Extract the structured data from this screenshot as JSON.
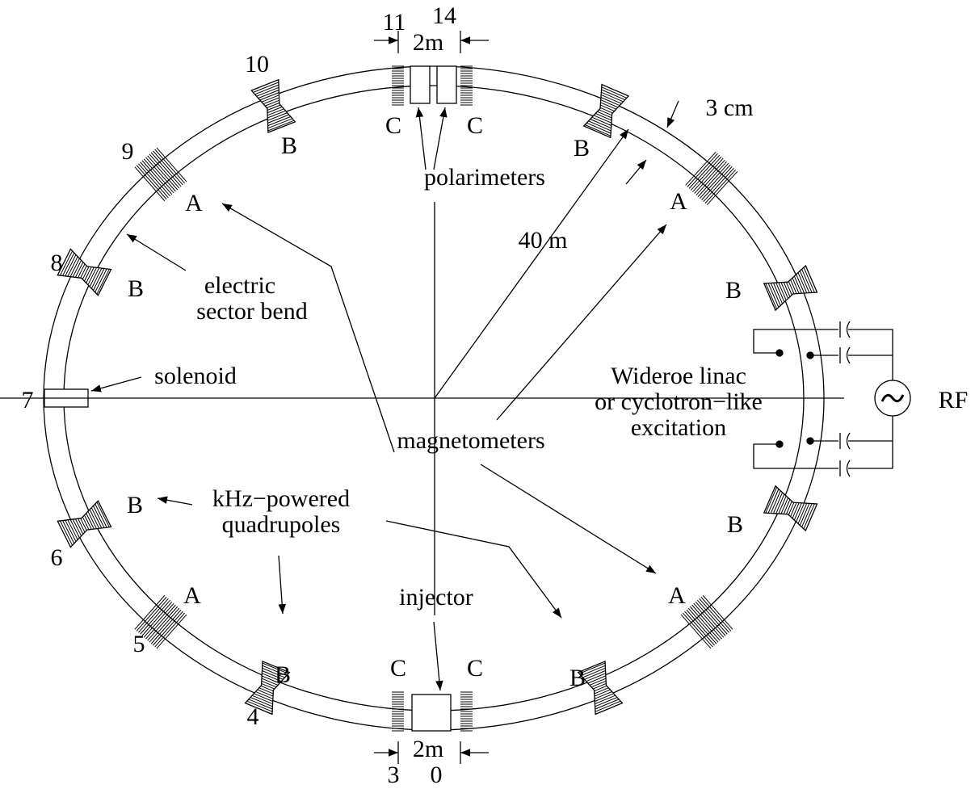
{
  "labels": [
    "11",
    "14",
    "2m",
    "10",
    "C",
    "C",
    "B",
    "3 cm",
    "B",
    "9",
    "polarimeters",
    "A",
    "A",
    "40 m",
    "8",
    "B",
    "electric",
    "sector bend",
    "B",
    "7",
    "solenoid",
    "Wideroe linac",
    "or cyclotron−like",
    "excitation",
    "RF",
    "magnetometers",
    "B",
    "kHz−powered",
    "quadrupoles",
    "6",
    "B",
    "A",
    "A",
    "5",
    "injector",
    "C",
    "C",
    "B",
    "B",
    "4",
    "2m",
    "3",
    "0"
  ]
}
